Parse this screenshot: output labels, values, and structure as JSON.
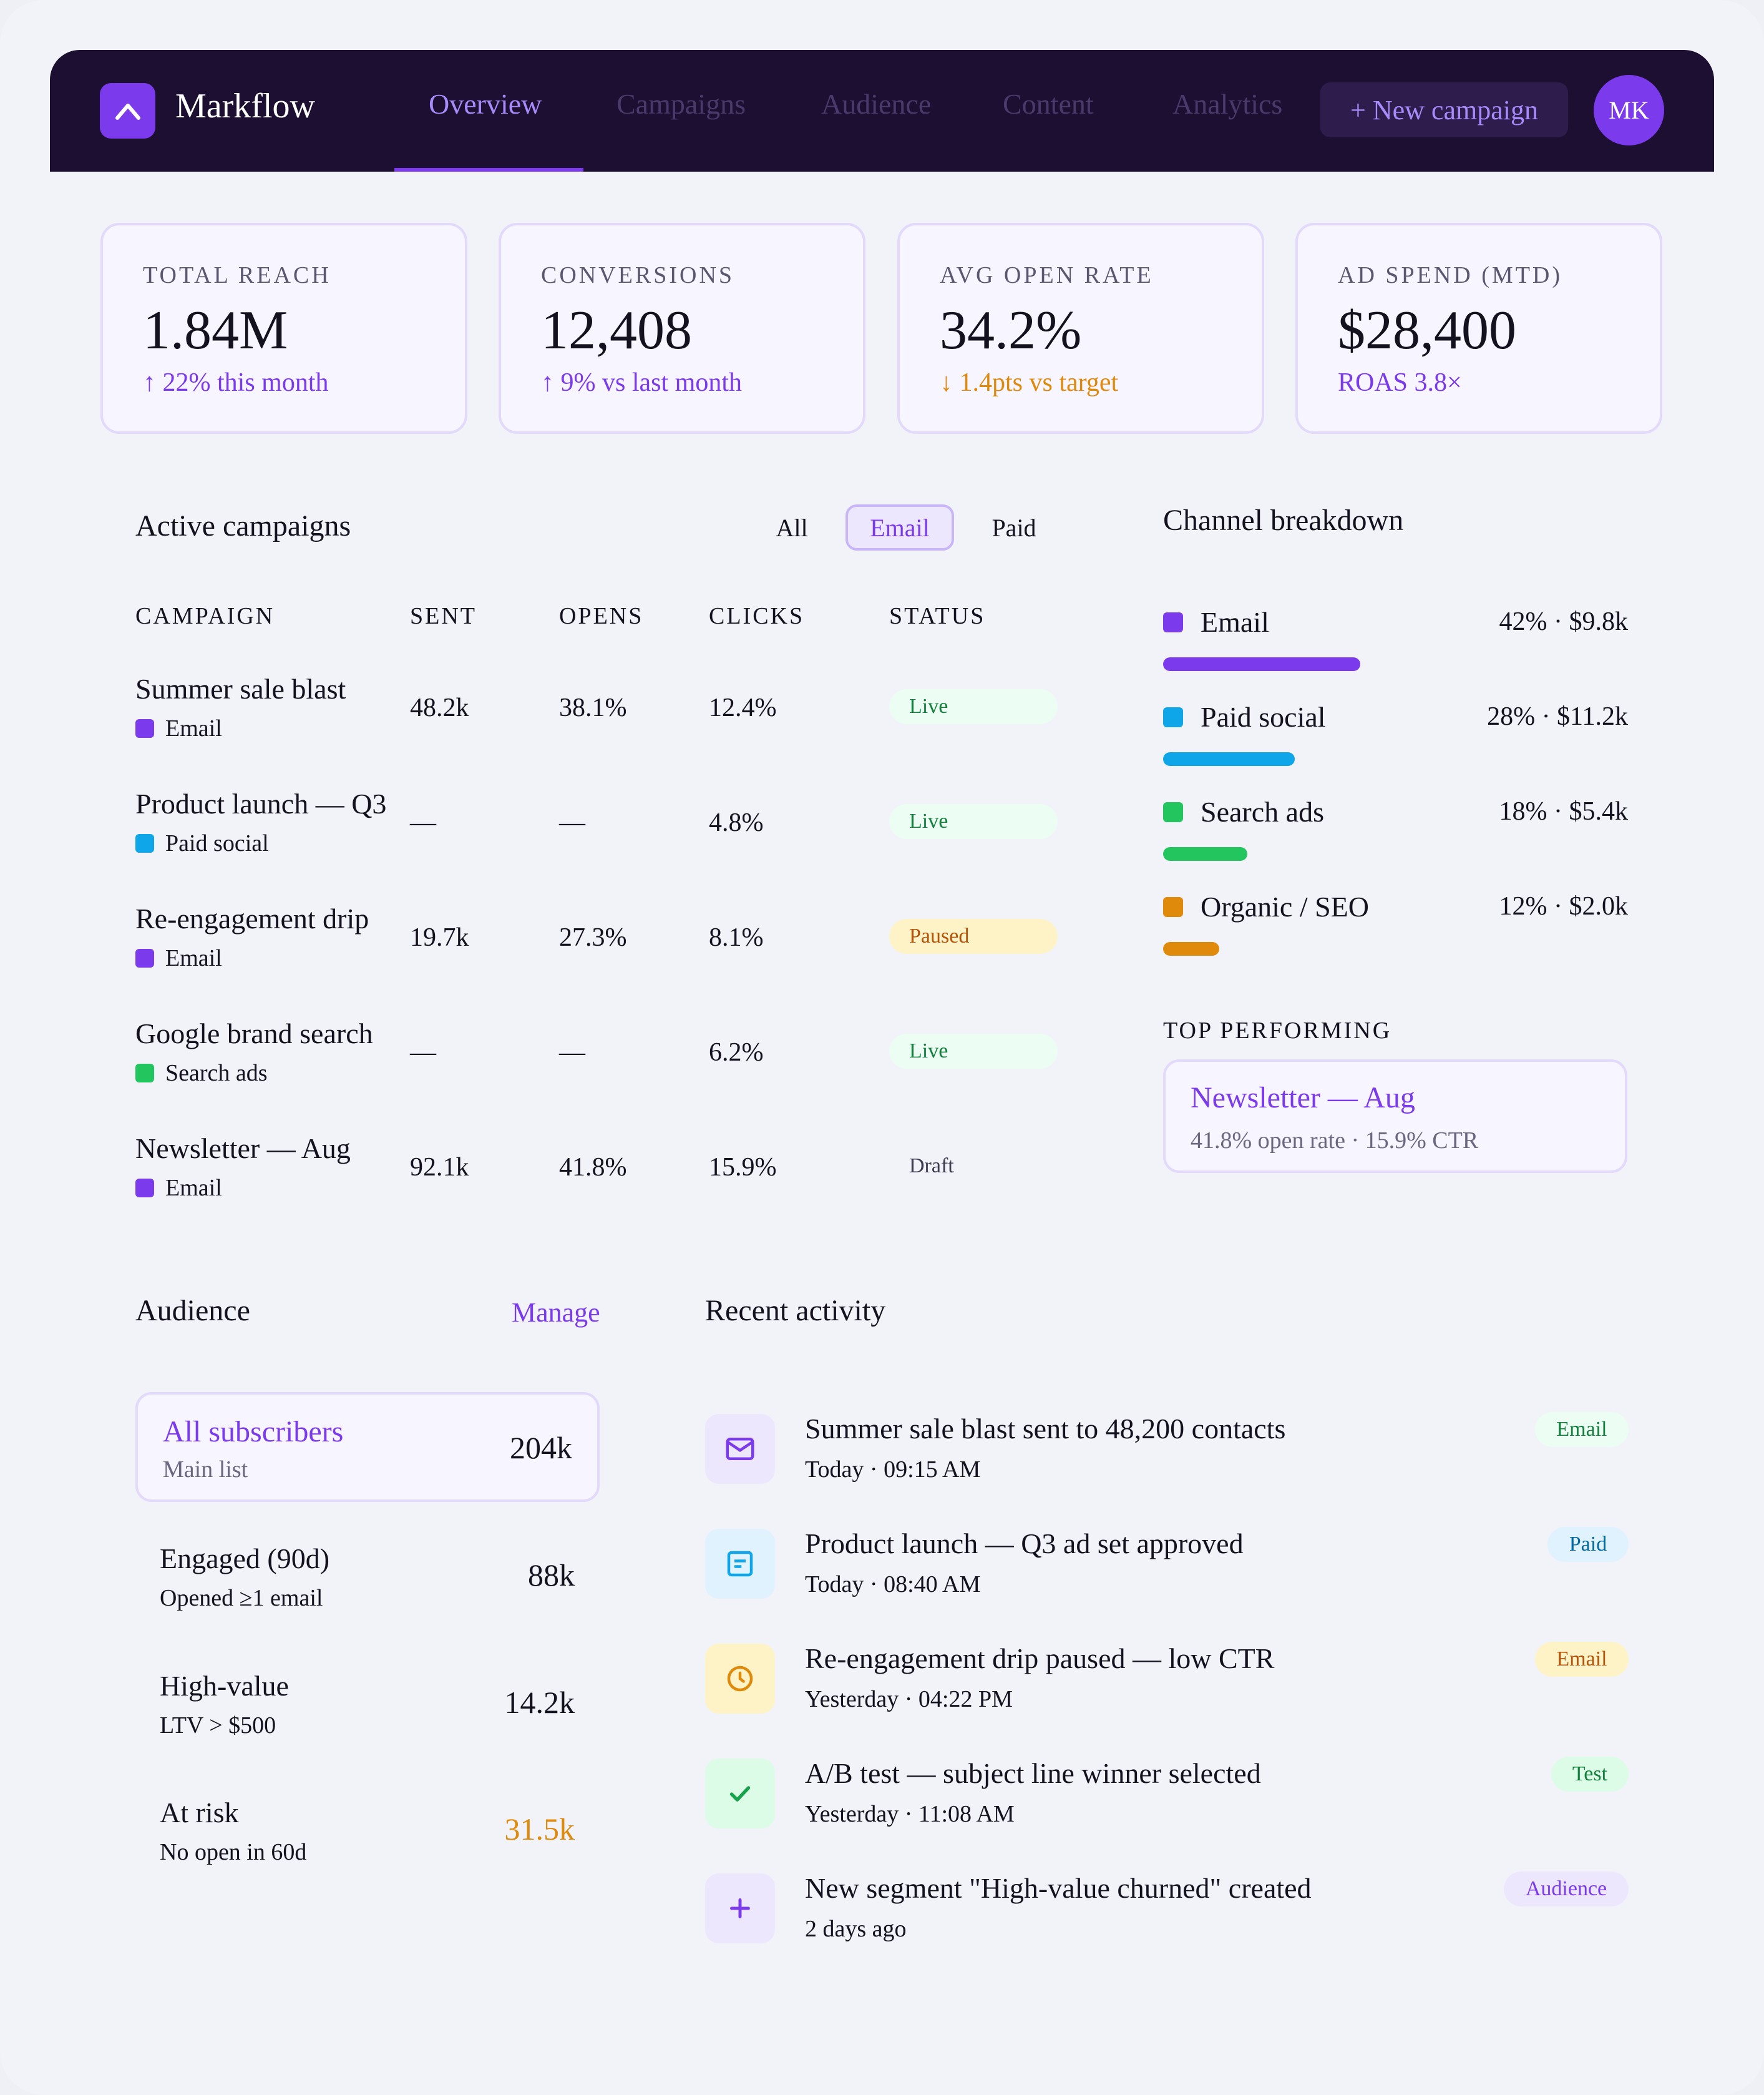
{
  "app": {
    "name": "Markflow"
  },
  "nav": {
    "tabs": [
      {
        "label": "Overview"
      },
      {
        "label": "Campaigns"
      },
      {
        "label": "Audience"
      },
      {
        "label": "Content"
      },
      {
        "label": "Analytics"
      }
    ],
    "new_campaign_label": "+ New campaign",
    "avatar_initials": "MK",
    "active_tab": "Overview"
  },
  "kpis": [
    {
      "label": "TOTAL REACH",
      "value": "1.84M",
      "delta": "↑ 22% this month",
      "tone": "up"
    },
    {
      "label": "CONVERSIONS",
      "value": "12,408",
      "delta": "↑ 9% vs last month",
      "tone": "up"
    },
    {
      "label": "AVG OPEN RATE",
      "value": "34.2%",
      "delta": "↓ 1.4pts vs target",
      "tone": "warn"
    },
    {
      "label": "AD SPEND (MTD)",
      "value": "$28,400",
      "delta": "ROAS 3.8×",
      "tone": "up"
    }
  ],
  "campaigns": {
    "title": "Active campaigns",
    "filters": [
      {
        "label": "All"
      },
      {
        "label": "Email"
      },
      {
        "label": "Paid"
      }
    ],
    "active_filter": "Email",
    "columns": [
      "CAMPAIGN",
      "SENT",
      "OPENS",
      "CLICKS",
      "STATUS"
    ],
    "rows": [
      {
        "name": "Summer sale blast",
        "channel": "Email",
        "sent": "48.2k",
        "opens": "38.1%",
        "clicks": "12.4%",
        "status": "Live"
      },
      {
        "name": "Product launch — Q3",
        "channel": "Paid social",
        "sent": "—",
        "opens": "—",
        "clicks": "4.8%",
        "status": "Live"
      },
      {
        "name": "Re-engagement drip",
        "channel": "Email",
        "sent": "19.7k",
        "opens": "27.3%",
        "clicks": "8.1%",
        "status": "Paused"
      },
      {
        "name": "Google brand search",
        "channel": "Search ads",
        "sent": "—",
        "opens": "—",
        "clicks": "6.2%",
        "status": "Live"
      },
      {
        "name": "Newsletter — Aug",
        "channel": "Email",
        "sent": "92.1k",
        "opens": "41.8%",
        "clicks": "15.9%",
        "status": "Draft"
      }
    ]
  },
  "channels": {
    "title": "Channel breakdown",
    "items": [
      {
        "name": "Email",
        "share": 42,
        "value": "42% · $9.8k",
        "color": "#7c3aed"
      },
      {
        "name": "Paid social",
        "share": 28,
        "value": "28% · $11.2k",
        "color": "#0ea5e9"
      },
      {
        "name": "Search ads",
        "share": 18,
        "value": "18% · $5.4k",
        "color": "#22c55e"
      },
      {
        "name": "Organic / SEO",
        "share": 12,
        "value": "12% · $2.0k",
        "color": "#e08a0c"
      }
    ],
    "top_label": "TOP PERFORMING",
    "top_name": "Newsletter — Aug",
    "top_detail": "41.8% open rate · 15.9% CTR"
  },
  "audience": {
    "title": "Audience",
    "manage_label": "Manage",
    "segments": [
      {
        "name": "All subscribers",
        "sub": "Main list",
        "value": "204k"
      },
      {
        "name": "Engaged (90d)",
        "sub": "Opened ≥1 email",
        "value": "88k"
      },
      {
        "name": "High-value",
        "sub": "LTV > $500",
        "value": "14.2k"
      },
      {
        "name": "At risk",
        "sub": "No open in 60d",
        "value": "31.5k"
      }
    ]
  },
  "activity": {
    "title": "Recent activity",
    "items": [
      {
        "title": "Summer sale blast sent to 48,200 contacts",
        "time": "Today · 09:15 AM",
        "tag": "Email",
        "icon": "mail-icon"
      },
      {
        "title": "Product launch — Q3 ad set approved",
        "time": "Today · 08:40 AM",
        "tag": "Paid",
        "icon": "ad-icon"
      },
      {
        "title": "Re-engagement drip paused — low CTR",
        "time": "Yesterday · 04:22 PM",
        "tag": "Email",
        "icon": "clock-icon"
      },
      {
        "title": "A/B test — subject line winner selected",
        "time": "Yesterday · 11:08 AM",
        "tag": "Test",
        "icon": "check-icon"
      },
      {
        "title": "New segment \"High-value churned\" created",
        "time": "2 days ago",
        "tag": "Audience",
        "icon": "plus-icon"
      }
    ]
  }
}
